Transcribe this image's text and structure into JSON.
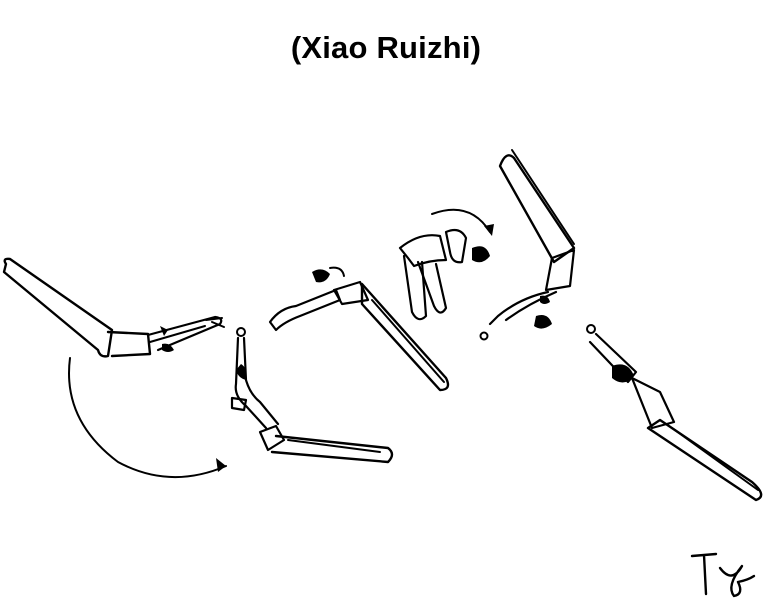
{
  "title": "(Xiao Ruizhi)",
  "diagram": {
    "figures": [
      "stroke-phase-1",
      "stroke-phase-2",
      "stroke-phase-3",
      "stroke-phase-4",
      "stroke-phase-5",
      "stroke-phase-6"
    ]
  },
  "colors": {
    "ink": "#000000",
    "background": "#ffffff"
  }
}
